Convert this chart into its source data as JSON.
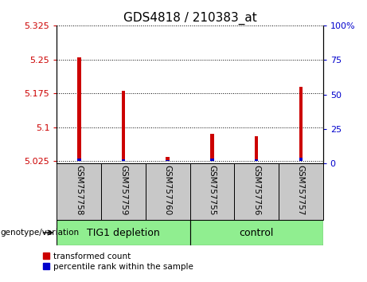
{
  "title": "GDS4818 / 210383_at",
  "categories": [
    "GSM757758",
    "GSM757759",
    "GSM757760",
    "GSM757755",
    "GSM757756",
    "GSM757757"
  ],
  "red_values": [
    5.255,
    5.18,
    5.035,
    5.085,
    5.08,
    5.19
  ],
  "blue_values": [
    5.031,
    5.03,
    5.028,
    5.031,
    5.029,
    5.032
  ],
  "ylim_left": [
    5.02,
    5.325
  ],
  "ylim_right": [
    0,
    100
  ],
  "yticks_left": [
    5.025,
    5.1,
    5.175,
    5.25,
    5.325
  ],
  "yticks_right": [
    0,
    25,
    50,
    75,
    100
  ],
  "ytick_labels_left": [
    "5.025",
    "5.1",
    "5.175",
    "5.25",
    "5.325"
  ],
  "ytick_labels_right": [
    "0",
    "25",
    "50",
    "75",
    "100%"
  ],
  "group1_label": "TIG1 depletion",
  "group2_label": "control",
  "group1_color": "#90EE90",
  "group2_color": "#90EE90",
  "bar_base": 5.025,
  "bar_width": 0.08,
  "red_color": "#CC0000",
  "blue_color": "#0000CC",
  "legend_red_label": "transformed count",
  "legend_blue_label": "percentile rank within the sample",
  "genotype_label": "genotype/variation",
  "left_ylabel_color": "#CC0000",
  "right_ylabel_color": "#0000CC",
  "background_xtick": "#C8C8C8",
  "grid_color": "#000000",
  "title_fontsize": 11,
  "tick_fontsize": 8
}
